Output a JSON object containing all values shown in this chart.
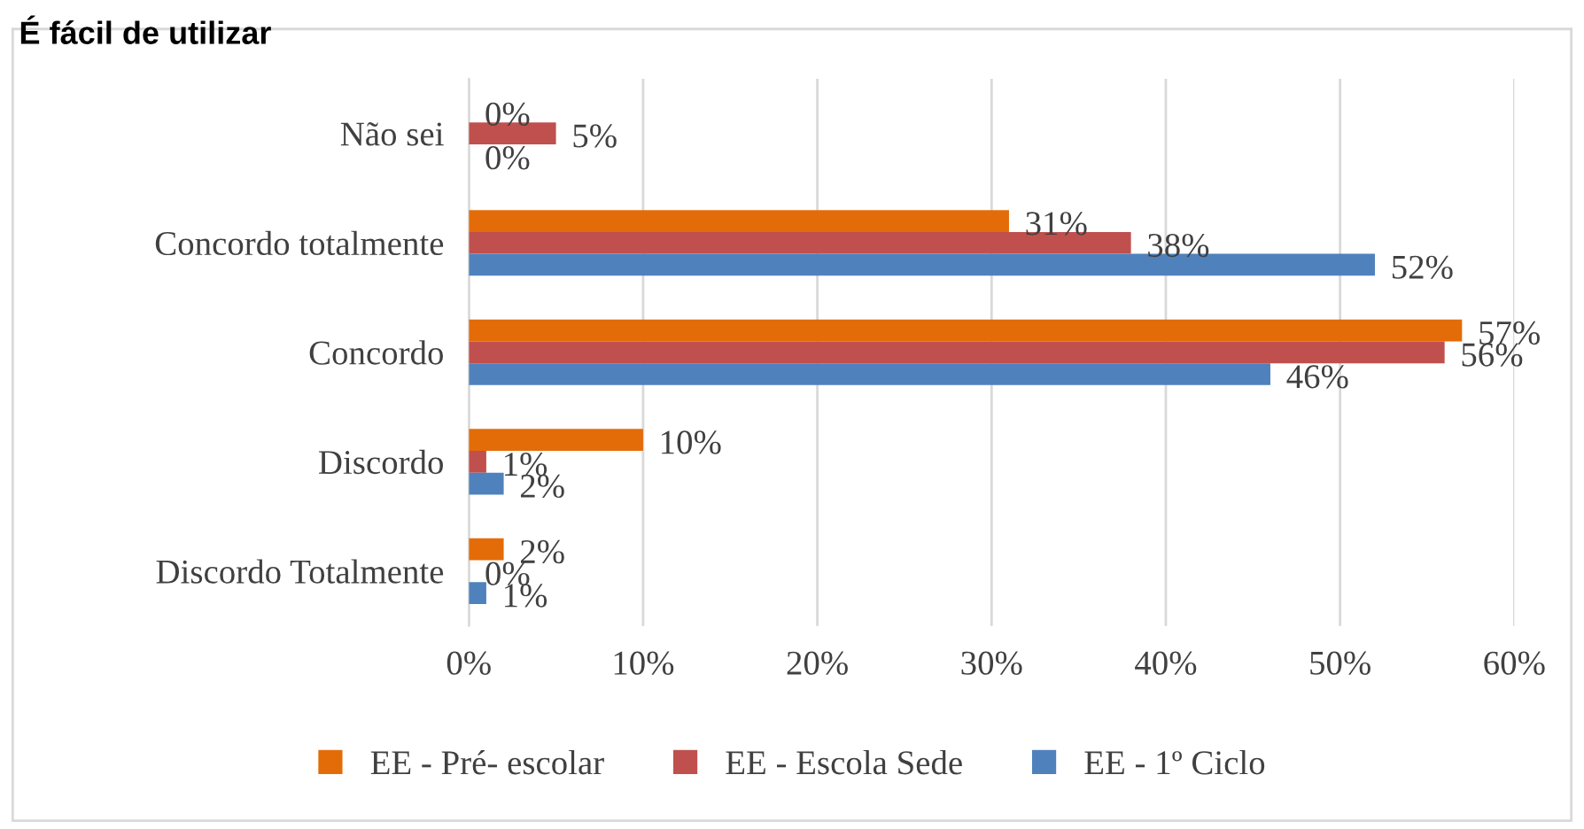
{
  "chart_data": {
    "type": "bar",
    "orientation": "horizontal",
    "title": "É fácil de utilizar",
    "categories": [
      "Não sei",
      "Concordo totalmente",
      "Concordo",
      "Discordo",
      "Discordo Totalmente"
    ],
    "series": [
      {
        "name": "EE - Pré- escolar",
        "color": "#e36c09",
        "values": [
          0,
          31,
          57,
          10,
          2
        ]
      },
      {
        "name": "EE - Escola Sede",
        "color": "#c0504d",
        "values": [
          5,
          38,
          56,
          1,
          0
        ]
      },
      {
        "name": "EE - 1º Ciclo",
        "color": "#4f81bd",
        "values": [
          0,
          52,
          46,
          2,
          1
        ]
      }
    ],
    "xlim": [
      0,
      60
    ],
    "xticks": [
      {
        "value": 0,
        "label": "0%"
      },
      {
        "value": 10,
        "label": "10%"
      },
      {
        "value": 20,
        "label": "20%"
      },
      {
        "value": 30,
        "label": "30%"
      },
      {
        "value": 40,
        "label": "40%"
      },
      {
        "value": 50,
        "label": "50%"
      },
      {
        "value": 60,
        "label": "60%"
      }
    ],
    "grid": "x",
    "legend": "bottom",
    "value_labels": [
      [
        "0%",
        "31%",
        "57%",
        "10%",
        "2%"
      ],
      [
        "5%",
        "38%",
        "56%",
        "1%",
        "0%"
      ],
      [
        "0%",
        "52%",
        "46%",
        "2%",
        "1%"
      ]
    ]
  }
}
